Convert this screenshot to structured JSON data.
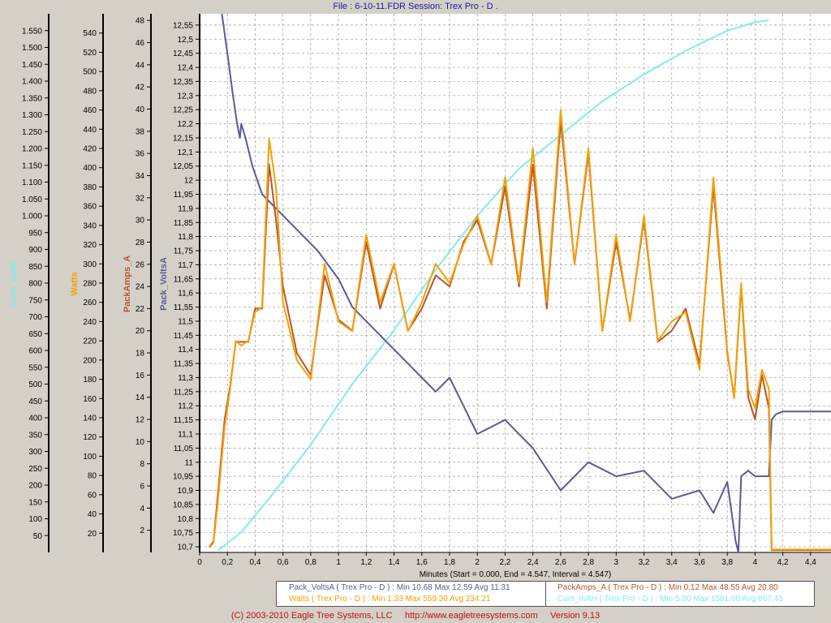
{
  "header": {
    "title": "File : 6-10-11.FDR   Session: Trex Pro - D ."
  },
  "footer": {
    "copyright": "(C) 2003-2010 Eagle Tree Systems, LLC",
    "url": "http://www.eagletreesystems.com",
    "version": "Version 9.13"
  },
  "colors": {
    "plot_bg": "#ffffff",
    "grid": "#9a9a9a",
    "volts": "#5a5a9a",
    "amps": "#b8552a",
    "watts": "#f5a000",
    "mah": "#80ecec",
    "panel": "#d4d0c8"
  },
  "legend": {
    "volts": "Pack_VoltsA ( Trex Pro - D ) : Min 10.68   Max 12.59    Avg 11.31",
    "amps": "PackAmps_A ( Trex Pro - D ) : Min 0.12   Max 48.55    Avg 20.80",
    "watts": "Watts ( Trex Pro - D ) : Min 1.33   Max 559.30    Avg 234.21",
    "mah": "Cum_mAH ( Trex Pro - D ) : Min 5.00   Max 1581.00    Avg 867.43"
  },
  "chart_data": {
    "type": "line",
    "x_axis": {
      "label": "Minutes (Start = 0.000,  End = 4.547, Interval =  4.547)",
      "range": [
        0,
        4.547
      ],
      "ticks": [
        "0",
        "0,2",
        "0,4",
        "0,6",
        "0,8",
        "1",
        "1,2",
        "1,4",
        "1,6",
        "1,8",
        "2",
        "2,2",
        "2,4",
        "2,6",
        "2,8",
        "3",
        "3,2",
        "3,4",
        "3,6",
        "3,8",
        "4",
        "4,2",
        "4,4"
      ]
    },
    "axes": [
      {
        "label": "Cum_mAH",
        "color": "#80ecec",
        "range": [
          0,
          1600
        ],
        "ticks": [
          "50",
          "100",
          "150",
          "200",
          "250",
          "300",
          "350",
          "400",
          "450",
          "500",
          "550",
          "600",
          "650",
          "700",
          "750",
          "800",
          "850",
          "900",
          "950",
          "1.000",
          "1.050",
          "1.100",
          "1.150",
          "1.200",
          "1.250",
          "1.300",
          "1.350",
          "1.400",
          "1.450",
          "1.500",
          "1.550"
        ]
      },
      {
        "label": "Watts",
        "color": "#f5a000",
        "range": [
          0,
          560
        ],
        "ticks": [
          "20",
          "40",
          "60",
          "80",
          "100",
          "120",
          "140",
          "160",
          "180",
          "200",
          "220",
          "240",
          "260",
          "280",
          "300",
          "320",
          "340",
          "360",
          "380",
          "400",
          "420",
          "440",
          "460",
          "480",
          "500",
          "520",
          "540"
        ]
      },
      {
        "label": "PackAmps_A",
        "color": "#b8552a",
        "range": [
          0,
          48.6
        ],
        "ticks": [
          "2",
          "4",
          "6",
          "8",
          "10",
          "12",
          "14",
          "16",
          "18",
          "20",
          "22",
          "24",
          "26",
          "28",
          "30",
          "32",
          "34",
          "36",
          "38",
          "40",
          "42",
          "44",
          "46",
          "48"
        ]
      },
      {
        "label": "Pack_VoltsA",
        "color": "#5a5a9a",
        "range": [
          10.68,
          12.59
        ],
        "ticks": [
          "10,7",
          "10,75",
          "10,8",
          "10,85",
          "10,9",
          "10,95",
          "11",
          "11,05",
          "11,1",
          "11,15",
          "11,2",
          "11,25",
          "11,3",
          "11,35",
          "11,4",
          "11,45",
          "11,5",
          "11,55",
          "11,6",
          "11,65",
          "11,7",
          "11,75",
          "11,8",
          "11,85",
          "11,9",
          "11,95",
          "12",
          "12,05",
          "12,1",
          "12,15",
          "12,2",
          "12,25",
          "12,3",
          "12,35",
          "12,4",
          "12,45",
          "12,5",
          "12,55"
        ]
      }
    ],
    "series": [
      {
        "name": "Pack_VoltsA",
        "axis": 3,
        "x": [
          0.16,
          0.2,
          0.24,
          0.27,
          0.29,
          0.3,
          0.33,
          0.38,
          0.45,
          0.55,
          0.65,
          0.75,
          0.85,
          1.0,
          1.1,
          1.2,
          1.3,
          1.4,
          1.5,
          1.6,
          1.7,
          1.8,
          2.0,
          2.2,
          2.4,
          2.6,
          2.8,
          3.0,
          3.2,
          3.4,
          3.6,
          3.7,
          3.8,
          3.86,
          3.88,
          3.9,
          3.95,
          4.0,
          4.1,
          4.12,
          4.15,
          4.2,
          4.35,
          4.547
        ],
        "y": [
          12.59,
          12.45,
          12.3,
          12.2,
          12.15,
          12.2,
          12.15,
          12.05,
          11.95,
          11.9,
          11.85,
          11.8,
          11.75,
          11.65,
          11.55,
          11.5,
          11.45,
          11.4,
          11.35,
          11.3,
          11.25,
          11.3,
          11.1,
          11.15,
          11.05,
          10.9,
          11.0,
          10.95,
          10.97,
          10.87,
          10.9,
          10.82,
          10.93,
          10.72,
          10.68,
          10.95,
          10.97,
          10.95,
          10.95,
          11.15,
          11.17,
          11.18,
          11.18,
          11.18
        ]
      },
      {
        "name": "PackAmps_A",
        "axis": 2,
        "x": [
          0.07,
          0.1,
          0.13,
          0.18,
          0.22,
          0.26,
          0.3,
          0.35,
          0.4,
          0.45,
          0.5,
          0.55,
          0.6,
          0.7,
          0.8,
          0.9,
          1.0,
          1.1,
          1.2,
          1.3,
          1.4,
          1.5,
          1.6,
          1.7,
          1.8,
          1.9,
          2.0,
          2.1,
          2.2,
          2.3,
          2.4,
          2.5,
          2.6,
          2.7,
          2.8,
          2.9,
          3.0,
          3.1,
          3.2,
          3.3,
          3.4,
          3.5,
          3.6,
          3.7,
          3.8,
          3.85,
          3.9,
          3.95,
          4.0,
          4.05,
          4.1,
          4.12,
          4.15,
          4.547
        ],
        "y": [
          0.5,
          1,
          5,
          12,
          15,
          19,
          19,
          19,
          22,
          22,
          35,
          30,
          24,
          18,
          16,
          25,
          21,
          20,
          28,
          22,
          26,
          20,
          22,
          25,
          24,
          28,
          30,
          26,
          33,
          24,
          35,
          22,
          39,
          26,
          36,
          20,
          28,
          21,
          30,
          19,
          20,
          22,
          17,
          33,
          18,
          14,
          24,
          14,
          12,
          16,
          13,
          0.2,
          0.2,
          0.2
        ]
      },
      {
        "name": "Watts",
        "axis": 1,
        "x": [
          0.07,
          0.1,
          0.13,
          0.18,
          0.22,
          0.26,
          0.3,
          0.35,
          0.4,
          0.45,
          0.5,
          0.55,
          0.6,
          0.7,
          0.8,
          0.9,
          1.0,
          1.1,
          1.2,
          1.3,
          1.4,
          1.5,
          1.6,
          1.7,
          1.8,
          1.9,
          2.0,
          2.1,
          2.2,
          2.3,
          2.4,
          2.5,
          2.6,
          2.7,
          2.8,
          2.9,
          3.0,
          3.1,
          3.2,
          3.3,
          3.4,
          3.5,
          3.6,
          3.7,
          3.8,
          3.85,
          3.9,
          3.95,
          4.0,
          4.05,
          4.1,
          4.12,
          4.15,
          4.547
        ],
        "y": [
          5,
          10,
          50,
          130,
          170,
          220,
          215,
          220,
          250,
          255,
          430,
          380,
          260,
          200,
          180,
          300,
          240,
          230,
          330,
          260,
          300,
          230,
          260,
          300,
          280,
          320,
          350,
          300,
          390,
          280,
          420,
          260,
          460,
          300,
          420,
          230,
          330,
          240,
          350,
          220,
          240,
          250,
          190,
          390,
          210,
          160,
          280,
          170,
          150,
          190,
          170,
          3,
          3,
          3
        ]
      },
      {
        "name": "Cum_mAH",
        "axis": 0,
        "x": [
          0.13,
          0.3,
          0.5,
          0.8,
          1.1,
          1.4,
          1.7,
          2.0,
          2.3,
          2.6,
          2.9,
          3.2,
          3.5,
          3.8,
          4.0,
          4.1
        ],
        "y": [
          5,
          60,
          160,
          320,
          500,
          660,
          840,
          1000,
          1140,
          1240,
          1340,
          1420,
          1490,
          1550,
          1575,
          1581
        ]
      }
    ]
  }
}
